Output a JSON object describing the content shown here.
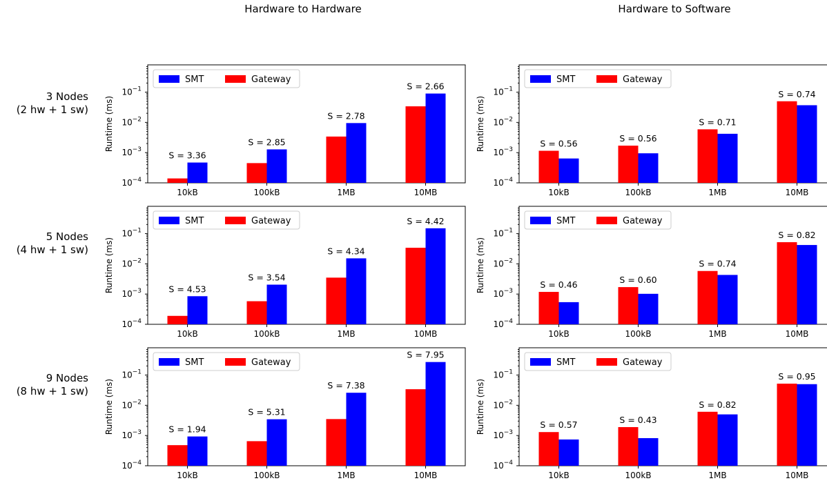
{
  "column_titles": [
    "Hardware to Hardware",
    "Hardware to Software"
  ],
  "row_labels": [
    [
      "3 Nodes",
      "(2 hw + 1 sw)"
    ],
    [
      "5 Nodes",
      "(4 hw + 1 sw)"
    ],
    [
      "9 Nodes",
      "(8 hw + 1 sw)"
    ]
  ],
  "chart_data": [
    {
      "type": "bar",
      "column": "Hardware to Hardware",
      "row": "3 Nodes",
      "categories": [
        "10kB",
        "100kB",
        "1MB",
        "10MB"
      ],
      "series": [
        {
          "name": "Gateway",
          "values": [
            0.00014,
            0.00045,
            0.0034,
            0.034
          ]
        },
        {
          "name": "SMT",
          "values": [
            0.00047,
            0.00128,
            0.0095,
            0.09
          ]
        }
      ],
      "annotations": [
        "S = 3.36",
        "S = 2.85",
        "S = 2.78",
        "S = 2.66"
      ],
      "ylabel": "Runtime (ms)",
      "ylim": [
        0.0001,
        0.8
      ],
      "yscale": "log",
      "legend": [
        "SMT",
        "Gateway"
      ],
      "legend_loc": "upper left"
    },
    {
      "type": "bar",
      "column": "Hardware to Software",
      "row": "3 Nodes",
      "categories": [
        "10kB",
        "100kB",
        "1MB",
        "10MB"
      ],
      "series": [
        {
          "name": "Gateway",
          "values": [
            0.00115,
            0.0017,
            0.0059,
            0.05
          ]
        },
        {
          "name": "SMT",
          "values": [
            0.00064,
            0.00095,
            0.0042,
            0.037
          ]
        }
      ],
      "annotations": [
        "S = 0.56",
        "S = 0.56",
        "S = 0.71",
        "S = 0.74"
      ],
      "ylabel": "Runtime (ms)",
      "ylim": [
        0.0001,
        0.8
      ],
      "yscale": "log",
      "legend": [
        "SMT",
        "Gateway"
      ],
      "legend_loc": "upper left"
    },
    {
      "type": "bar",
      "column": "Hardware to Hardware",
      "row": "5 Nodes",
      "categories": [
        "10kB",
        "100kB",
        "1MB",
        "10MB"
      ],
      "series": [
        {
          "name": "Gateway",
          "values": [
            0.00019,
            0.00058,
            0.0035,
            0.034
          ]
        },
        {
          "name": "SMT",
          "values": [
            0.00085,
            0.00205,
            0.0152,
            0.15
          ]
        }
      ],
      "annotations": [
        "S = 4.53",
        "S = 3.54",
        "S = 4.34",
        "S = 4.42"
      ],
      "ylabel": "Runtime (ms)",
      "ylim": [
        0.0001,
        0.8
      ],
      "yscale": "log",
      "legend": [
        "SMT",
        "Gateway"
      ],
      "legend_loc": "upper left"
    },
    {
      "type": "bar",
      "column": "Hardware to Software",
      "row": "5 Nodes",
      "categories": [
        "10kB",
        "100kB",
        "1MB",
        "10MB"
      ],
      "series": [
        {
          "name": "Gateway",
          "values": [
            0.00118,
            0.0017,
            0.0058,
            0.052
          ]
        },
        {
          "name": "SMT",
          "values": [
            0.00054,
            0.00102,
            0.0043,
            0.042
          ]
        }
      ],
      "annotations": [
        "S = 0.46",
        "S = 0.60",
        "S = 0.74",
        "S = 0.82"
      ],
      "ylabel": "Runtime (ms)",
      "ylim": [
        0.0001,
        0.8
      ],
      "yscale": "log",
      "legend": [
        "SMT",
        "Gateway"
      ],
      "legend_loc": "upper left"
    },
    {
      "type": "bar",
      "column": "Hardware to Hardware",
      "row": "9 Nodes",
      "categories": [
        "10kB",
        "100kB",
        "1MB",
        "10MB"
      ],
      "series": [
        {
          "name": "Gateway",
          "values": [
            0.00048,
            0.00065,
            0.0035,
            0.034
          ]
        },
        {
          "name": "SMT",
          "values": [
            0.00093,
            0.00345,
            0.026,
            0.27
          ]
        }
      ],
      "annotations": [
        "S = 1.94",
        "S = 5.31",
        "S = 7.38",
        "S = 7.95"
      ],
      "ylabel": "Runtime (ms)",
      "ylim": [
        0.0001,
        0.8
      ],
      "yscale": "log",
      "legend": [
        "SMT",
        "Gateway"
      ],
      "legend_loc": "upper left"
    },
    {
      "type": "bar",
      "column": "Hardware to Software",
      "row": "9 Nodes",
      "categories": [
        "10kB",
        "100kB",
        "1MB",
        "10MB"
      ],
      "series": [
        {
          "name": "Gateway",
          "values": [
            0.0013,
            0.0019,
            0.0061,
            0.052
          ]
        },
        {
          "name": "SMT",
          "values": [
            0.00074,
            0.00082,
            0.005,
            0.05
          ]
        }
      ],
      "annotations": [
        "S = 0.57",
        "S = 0.43",
        "S = 0.82",
        "S = 0.95"
      ],
      "ylabel": "Runtime (ms)",
      "ylim": [
        0.0001,
        0.8
      ],
      "yscale": "log",
      "legend": [
        "SMT",
        "Gateway"
      ],
      "legend_loc": "upper left"
    }
  ],
  "colors": {
    "SMT": "#0000ff",
    "Gateway": "#ff0000"
  }
}
